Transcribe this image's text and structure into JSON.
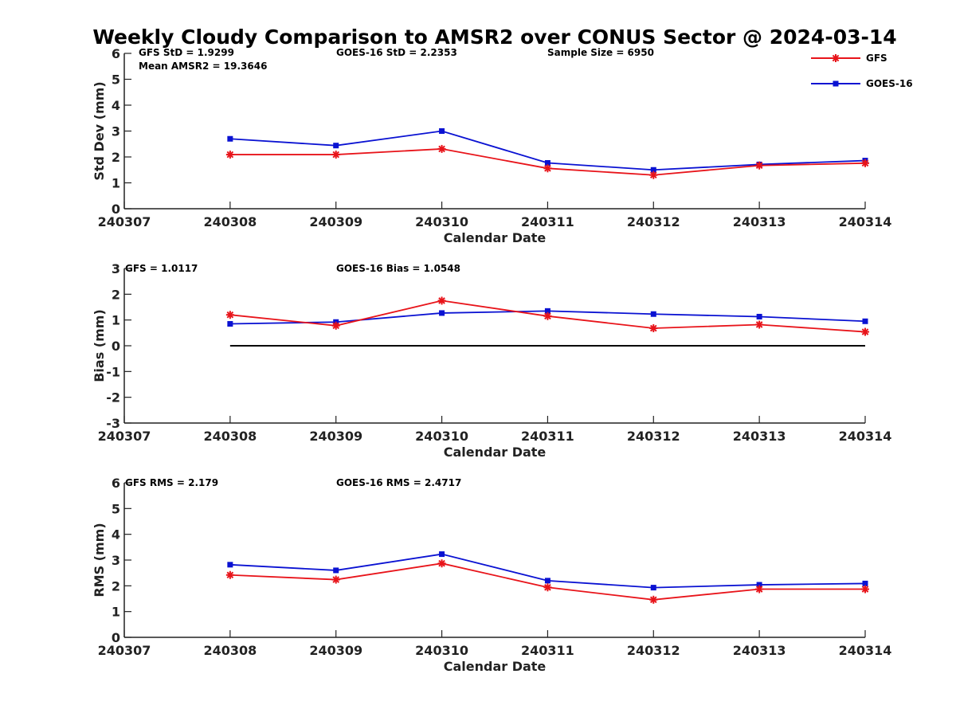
{
  "chart_data": [
    {
      "type": "line",
      "id": "stddev",
      "title": "Weekly Cloudy Comparison to AMSR2 over CONUS Sector @ 2024-03-14",
      "xlabel": "Calendar Date",
      "ylabel": "Std Dev (mm)",
      "xlim": [
        240307,
        240314
      ],
      "ylim": [
        0,
        6
      ],
      "xticks": [
        "240307",
        "240308",
        "240309",
        "240310",
        "240311",
        "240312",
        "240313",
        "240314"
      ],
      "yticks": [
        "0",
        "1",
        "2",
        "3",
        "4",
        "5",
        "6"
      ],
      "x": [
        240308,
        240309,
        240310,
        240311,
        240312,
        240313,
        240314
      ],
      "series": [
        {
          "name": "GFS",
          "color": "#e8141a",
          "marker": "asterisk",
          "values": [
            2.09,
            2.09,
            2.31,
            1.56,
            1.3,
            1.67,
            1.76
          ]
        },
        {
          "name": "GOES-16",
          "color": "#0a12d2",
          "marker": "square",
          "values": [
            2.7,
            2.44,
            3.0,
            1.77,
            1.5,
            1.71,
            1.86
          ]
        }
      ],
      "annotations": [
        "GFS StD = 1.9299",
        "GOES-16 StD = 2.2353",
        "Sample Size = 6950",
        "Mean AMSR2 = 19.3646"
      ],
      "legend": {
        "placement": "top-right",
        "entries": [
          "GFS",
          "GOES-16"
        ]
      }
    },
    {
      "type": "line",
      "id": "bias",
      "xlabel": "Calendar Date",
      "ylabel": "Bias (mm)",
      "xlim": [
        240307,
        240314
      ],
      "ylim": [
        -3,
        3
      ],
      "xticks": [
        "240307",
        "240308",
        "240309",
        "240310",
        "240311",
        "240312",
        "240313",
        "240314"
      ],
      "yticks": [
        "-3",
        "-2",
        "-1",
        "0",
        "1",
        "2",
        "3"
      ],
      "x": [
        240308,
        240309,
        240310,
        240311,
        240312,
        240313,
        240314
      ],
      "reference_line": {
        "y": 0,
        "color": "#000000"
      },
      "series": [
        {
          "name": "GFS",
          "color": "#e8141a",
          "marker": "asterisk",
          "values": [
            1.2,
            0.78,
            1.75,
            1.15,
            0.68,
            0.82,
            0.54
          ]
        },
        {
          "name": "GOES-16",
          "color": "#0a12d2",
          "marker": "square",
          "values": [
            0.85,
            0.92,
            1.27,
            1.35,
            1.23,
            1.13,
            0.95
          ]
        }
      ],
      "annotations": [
        "GFS = 1.0117",
        "GOES-16 Bias  = 1.0548"
      ]
    },
    {
      "type": "line",
      "id": "rms",
      "xlabel": "Calendar Date",
      "ylabel": "RMS (mm)",
      "xlim": [
        240307,
        240314
      ],
      "ylim": [
        0,
        6
      ],
      "xticks": [
        "240307",
        "240308",
        "240309",
        "240310",
        "240311",
        "240312",
        "240313",
        "240314"
      ],
      "yticks": [
        "0",
        "1",
        "2",
        "3",
        "4",
        "5",
        "6"
      ],
      "x": [
        240308,
        240309,
        240310,
        240311,
        240312,
        240313,
        240314
      ],
      "series": [
        {
          "name": "GFS",
          "color": "#e8141a",
          "marker": "asterisk",
          "values": [
            2.42,
            2.24,
            2.87,
            1.94,
            1.46,
            1.87,
            1.87
          ]
        },
        {
          "name": "GOES-16",
          "color": "#0a12d2",
          "marker": "square",
          "values": [
            2.82,
            2.6,
            3.23,
            2.2,
            1.93,
            2.04,
            2.09
          ]
        }
      ],
      "annotations": [
        "GFS RMS = 2.179",
        "GOES-16 RMS = 2.4717"
      ]
    }
  ]
}
